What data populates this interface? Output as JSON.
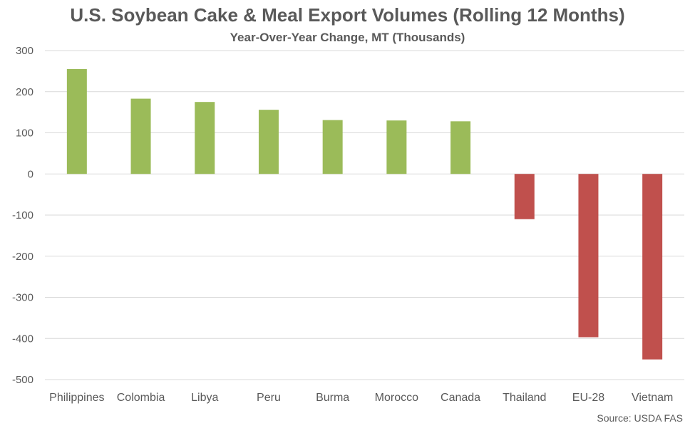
{
  "chart_data": {
    "type": "bar",
    "title": "U.S. Soybean Cake & Meal Export Volumes (Rolling 12 Months)",
    "subtitle": "Year-Over-Year Change, MT (Thousands)",
    "xlabel": "",
    "ylabel": "",
    "categories": [
      "Philippines",
      "Colombia",
      "Libya",
      "Peru",
      "Burma",
      "Morocco",
      "Canada",
      "Thailand",
      "EU-28",
      "Vietnam"
    ],
    "values": [
      255,
      183,
      175,
      156,
      131,
      130,
      128,
      -110,
      -397,
      -451
    ],
    "ylim": [
      -500,
      300
    ],
    "yticks": [
      300,
      200,
      100,
      0,
      -100,
      -200,
      -300,
      -400,
      -500
    ],
    "grid": true,
    "legend": "none",
    "colors": {
      "positive": "#9bbb59",
      "negative": "#c0504d",
      "grid": "#d9d9d9",
      "text": "#595959"
    }
  },
  "source": "Source: USDA FAS"
}
